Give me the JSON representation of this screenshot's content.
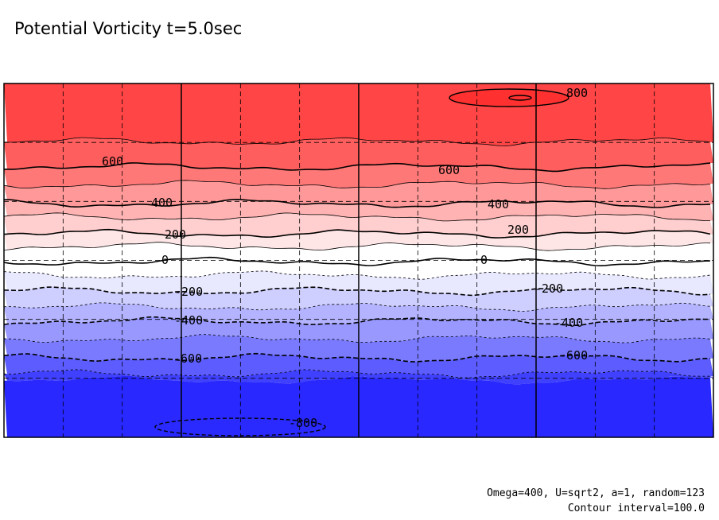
{
  "title": "Potential Vorticity t=5.0sec",
  "footnote_params": "Omega=400, U=sqrt2, a=1, random=123",
  "footnote_interval": "Contour interval=100.0",
  "chart_data": {
    "type": "contour",
    "title": "Potential Vorticity t=5.0sec",
    "xlabel": "",
    "ylabel": "",
    "contour_interval": 100.0,
    "color_scale": {
      "low": "#3f3fff",
      "mid": "#ffffff",
      "high": "#ff4040"
    },
    "fill_bands": [
      {
        "range": [
          700,
          800
        ],
        "color": "#ff4545"
      },
      {
        "range": [
          600,
          700
        ],
        "color": "#ff5e5e"
      },
      {
        "range": [
          500,
          600
        ],
        "color": "#ff7878"
      },
      {
        "range": [
          400,
          500
        ],
        "color": "#ff9898"
      },
      {
        "range": [
          300,
          400
        ],
        "color": "#ffb3b3"
      },
      {
        "range": [
          200,
          300
        ],
        "color": "#ffcece"
      },
      {
        "range": [
          100,
          200
        ],
        "color": "#ffe6e6"
      },
      {
        "range": [
          0,
          100
        ],
        "color": "#ffffff"
      },
      {
        "range": [
          -100,
          0
        ],
        "color": "#ffffff"
      },
      {
        "range": [
          -200,
          -100
        ],
        "color": "#e8e8ff"
      },
      {
        "range": [
          -300,
          -200
        ],
        "color": "#cfcfff"
      },
      {
        "range": [
          -400,
          -300
        ],
        "color": "#b3b3ff"
      },
      {
        "range": [
          -500,
          -400
        ],
        "color": "#9898ff"
      },
      {
        "range": [
          -600,
          -500
        ],
        "color": "#7a7aff"
      },
      {
        "range": [
          -700,
          -600
        ],
        "color": "#5c5cff"
      },
      {
        "range": [
          -800,
          -700
        ],
        "color": "#4040ff"
      },
      {
        "range": [
          -900,
          -800
        ],
        "color": "#2828ff"
      }
    ],
    "contour_labels": [
      {
        "text": "800",
        "level": 800
      },
      {
        "text": "600",
        "level": 600
      },
      {
        "text": "600",
        "level": 600
      },
      {
        "text": "400",
        "level": 400
      },
      {
        "text": "400",
        "level": 400
      },
      {
        "text": "200",
        "level": 200
      },
      {
        "text": "200",
        "level": 200
      },
      {
        "text": "0",
        "level": 0
      },
      {
        "text": "0",
        "level": 0
      },
      {
        "text": "-200",
        "level": -200
      },
      {
        "text": "-200",
        "level": -200
      },
      {
        "text": "-400",
        "level": -400
      },
      {
        "text": "-400",
        "level": -400
      },
      {
        "text": "-600",
        "level": -600
      },
      {
        "text": "-600",
        "level": -600
      },
      {
        "text": "-800",
        "level": -800
      }
    ],
    "negative_contours": "dashed",
    "grid": true
  }
}
